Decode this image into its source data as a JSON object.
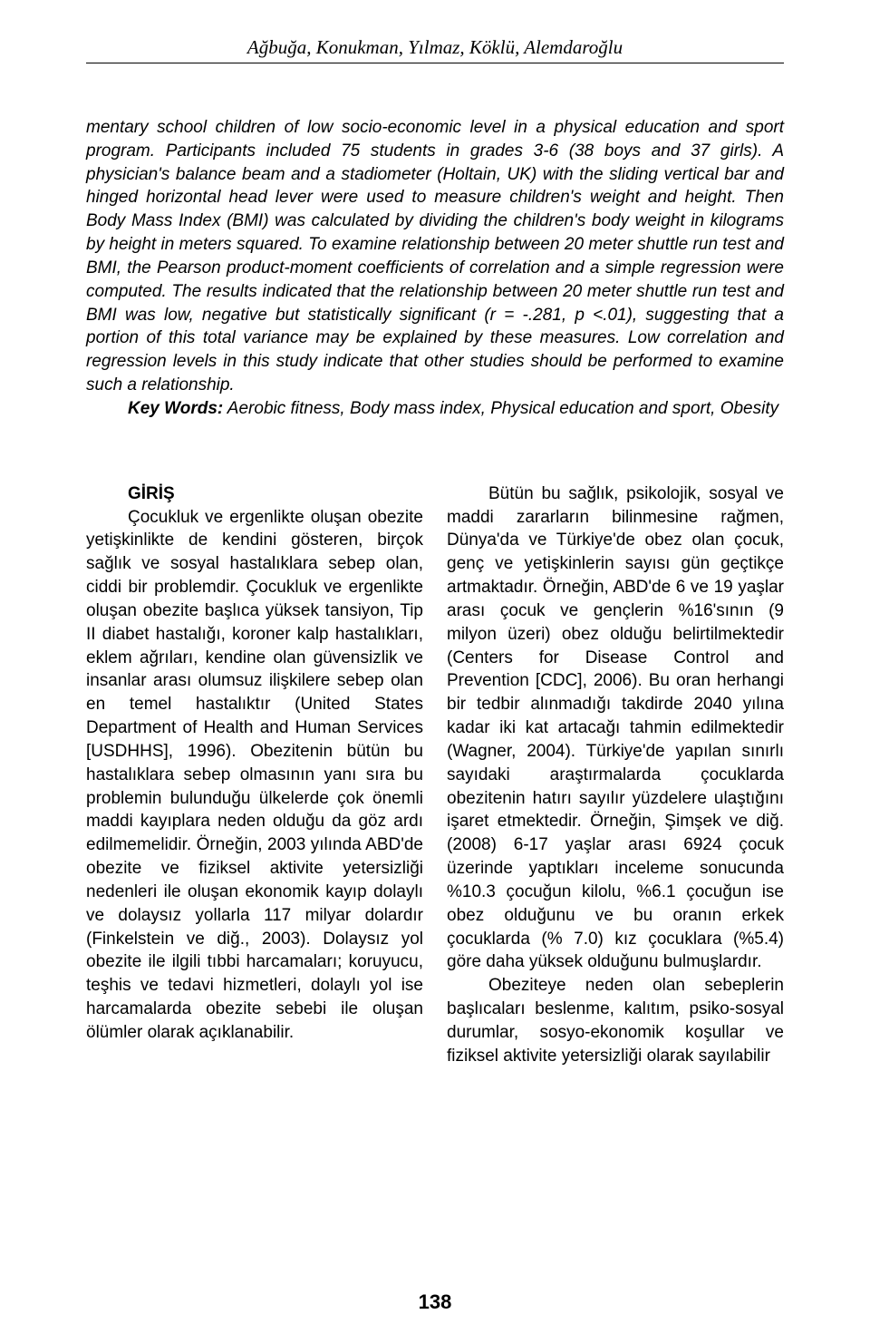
{
  "running_head": "Ağbuğa, Konukman, Yılmaz, Köklü, Alemdaroğlu",
  "abstract": {
    "body": "mentary school children of low socio-economic level in a physical education and sport program. Participants included 75 students in grades 3-6 (38 boys and 37 girls). A physician's balance beam and a stadiometer (Holtain, UK) with the sliding vertical bar and hinged horizontal head lever were used to measure children's weight and height. Then Body Mass Index (BMI) was calculated by dividing the children's body weight in kilograms by height in meters squared. To examine relationship between 20 meter shuttle run test and BMI, the Pearson product-moment coefficients of correlation and a simple regression were computed. The results indicated that the relationship between 20 meter shuttle run test and BMI was low, negative but statistically significant (r = -.281, p <.01), suggesting that a portion of this total variance may be explained by these measures. Low correlation and regression levels in this study indicate that other studies should be performed to examine such a relationship.",
    "keywords_label": "Key Words:",
    "keywords_text": " Aerobic fitness, Body mass index, Physical education and sport, Obesity"
  },
  "left_column": {
    "section_title": "GİRİŞ",
    "para1": "Çocukluk ve ergenlikte oluşan obezite yetişkinlikte de kendini gösteren, birçok sağlık ve sosyal hastalıklara sebep olan, ciddi bir problemdir. Çocukluk ve ergenlikte oluşan obezite başlıca yüksek tansiyon, Tip II diabet hastalığı, koroner kalp hastalıkları, eklem ağrıları, kendine olan güvensizlik ve insanlar arası olumsuz ilişkilere sebep olan en temel hastalıktır (United States Department of Health and Human Services [USDHHS], 1996). Obezitenin bütün bu hastalıklara sebep olmasının yanı sıra bu problemin bulunduğu ülkelerde çok önemli maddi kayıplara neden olduğu da göz ardı edilmemelidir. Örneğin, 2003 yılında ABD'de obezite ve fiziksel aktivite yetersizliği nedenleri ile oluşan ekonomik kayıp dolaylı ve dolaysız yollarla 117 milyar dolardır (Finkelstein ve diğ., 2003). Dolaysız yol obezite ile ilgili tıbbi harcamaları; koruyucu, teşhis ve tedavi hizmetleri, dolaylı yol ise harcamalarda obezite sebebi ile oluşan ölümler olarak açıklanabilir."
  },
  "right_column": {
    "para1": "Bütün bu sağlık, psikolojik, sosyal ve maddi zararların bilinmesine rağmen, Dünya'da ve Türkiye'de obez olan çocuk, genç ve yetişkinlerin sayısı gün geçtikçe artmaktadır. Örneğin, ABD'de 6 ve 19 yaşlar arası çocuk ve gençlerin %16'sının (9 milyon üzeri) obez olduğu belirtilmektedir (Centers for Disease Control and Prevention [CDC], 2006). Bu oran herhangi bir tedbir alınmadığı takdirde 2040 yılına kadar iki kat artacağı tahmin edilmektedir (Wagner, 2004). Türkiye'de yapılan sınırlı sayıdaki araştırmalarda çocuklarda obezitenin hatırı sayılır yüzdelere ulaştığını işaret etmektedir. Örneğin, Şimşek ve diğ. (2008) 6-17 yaşlar arası 6924 çocuk üzerinde yaptıkları inceleme sonucunda %10.3 çocuğun kilolu, %6.1 çocuğun ise obez olduğunu ve bu oranın erkek çocuklarda (% 7.0) kız çocuklara (%5.4) göre daha yüksek olduğunu bulmuşlardır.",
    "para2": "Obeziteye neden olan sebeplerin başlıcaları beslenme, kalıtım, psiko-sosyal durumlar, sosyo-ekonomik koşullar ve fiziksel aktivite yetersizliği olarak sayılabilir"
  },
  "page_number": "138"
}
